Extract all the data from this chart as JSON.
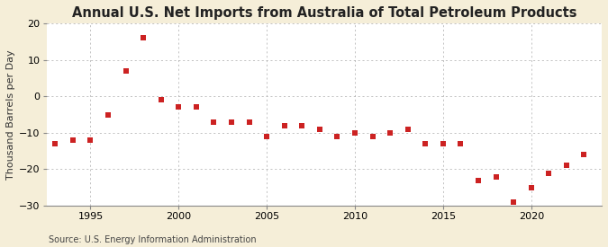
{
  "title": "Annual U.S. Net Imports from Australia of Total Petroleum Products",
  "ylabel": "Thousand Barrels per Day",
  "source": "Source: U.S. Energy Information Administration",
  "fig_background_color": "#f5eed8",
  "plot_background_color": "#ffffff",
  "marker_color": "#cc2222",
  "years": [
    1993,
    1994,
    1995,
    1996,
    1997,
    1998,
    1999,
    2000,
    2001,
    2002,
    2003,
    2004,
    2005,
    2006,
    2007,
    2008,
    2009,
    2010,
    2011,
    2012,
    2013,
    2014,
    2015,
    2016,
    2017,
    2018,
    2019,
    2020,
    2021,
    2022,
    2023
  ],
  "values": [
    -13,
    -12,
    -12,
    -5,
    7,
    16,
    -1,
    -3,
    -3,
    -7,
    -7,
    -7,
    -11,
    -8,
    -8,
    -9,
    -11,
    -10,
    -11,
    -10,
    -9,
    -13,
    -13,
    -13,
    -23,
    -22,
    -29,
    -25,
    -21,
    -19,
    -16
  ],
  "ylim": [
    -30,
    20
  ],
  "yticks": [
    -30,
    -20,
    -10,
    0,
    10,
    20
  ],
  "xlim": [
    1992.5,
    2024
  ],
  "xticks": [
    1995,
    2000,
    2005,
    2010,
    2015,
    2020
  ],
  "grid_color": "#aaaaaa",
  "title_fontsize": 10.5,
  "ylabel_fontsize": 8,
  "tick_fontsize": 8,
  "source_fontsize": 7
}
